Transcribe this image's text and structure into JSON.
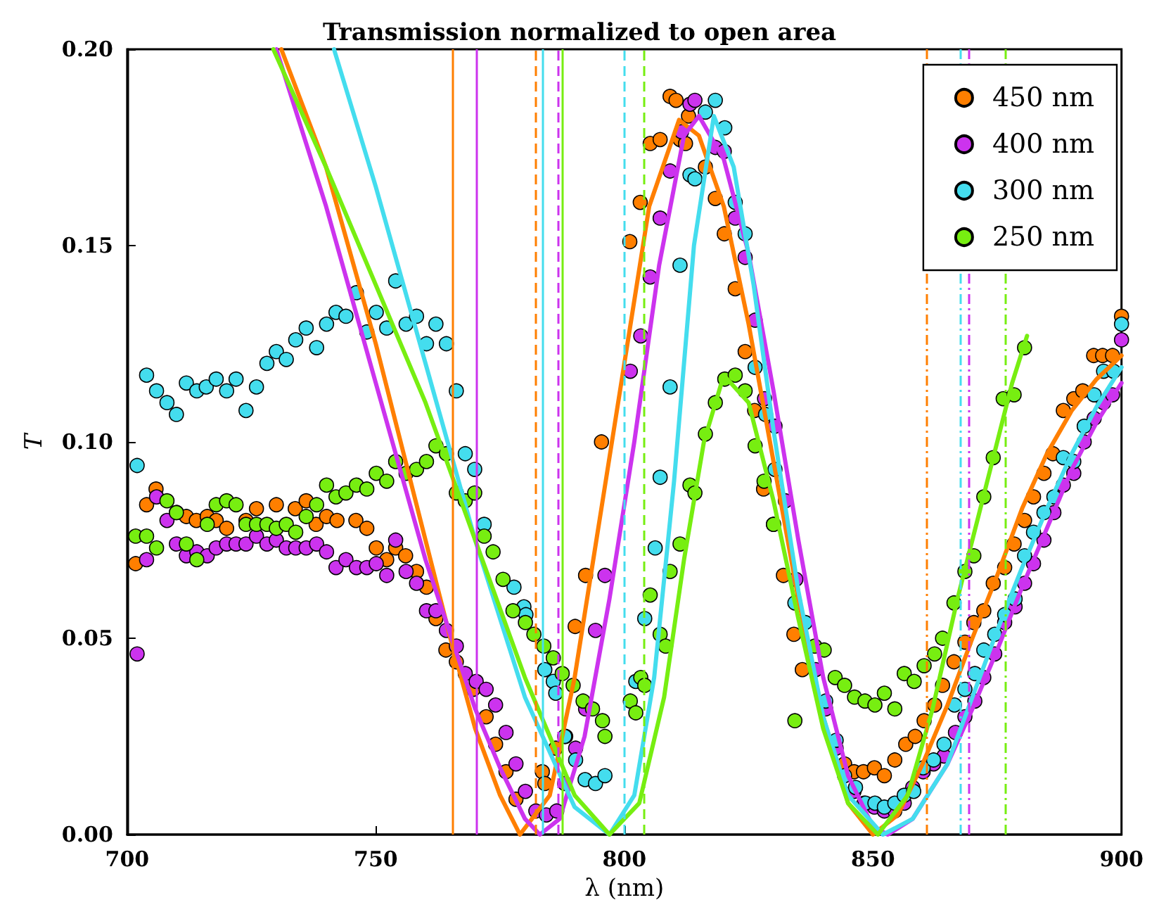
{
  "chart_data": {
    "type": "scatter",
    "title": "Transmission normalized to open area",
    "xlabel": "λ (nm)",
    "ylabel": "T",
    "xlim": [
      700,
      900
    ],
    "ylim": [
      0,
      0.2
    ],
    "xticks": [
      700,
      750,
      800,
      850,
      900
    ],
    "yticks": [
      {
        "value": 0,
        "label": "0.00"
      },
      {
        "value": 0.05,
        "label": "0.05"
      },
      {
        "value": 0.1,
        "label": "0.10"
      },
      {
        "value": 0.15,
        "label": "0.15"
      },
      {
        "value": 0.2,
        "label": "0.20"
      }
    ],
    "grid": false,
    "legend": "top right",
    "marker": "circle",
    "series": [
      {
        "name": "450 nm",
        "color": "#ff7f00",
        "x": [
          701.7,
          703.9,
          705.8,
          709.9,
          711.9,
          713.9,
          716.1,
          717.9,
          720,
          723.9,
          726,
          730,
          733.8,
          736,
          738,
          740.1,
          742.2,
          746,
          748.2,
          750.1,
          752.2,
          754,
          756,
          758.2,
          760.2,
          762.1,
          764.1,
          766.2,
          769.6,
          772.2,
          774.1,
          776.2,
          778.2,
          783.5,
          784,
          786.2,
          788.2,
          790.1,
          792.2,
          795.4,
          801.1,
          803.2,
          805.2,
          807.2,
          809.2,
          810.4,
          811.2,
          812.3,
          812.9,
          816.3,
          818.3,
          820.1,
          822.3,
          824.3,
          826.2,
          828,
          830,
          832,
          834.1,
          835.8,
          844.3,
          846.2,
          848.1,
          850.3,
          852.3,
          854.4,
          856.6,
          858.5,
          860.3,
          862.4,
          864,
          866.3,
          868.5,
          870.3,
          872.3,
          874.2,
          876.5,
          878.4,
          880.5,
          882.3,
          884.4,
          886.2,
          888.3,
          890.4,
          892.2,
          894.4,
          896.2,
          898.2,
          900
        ],
        "values": [
          0.069,
          0.084,
          0.088,
          0.082,
          0.081,
          0.08,
          0.081,
          0.08,
          0.078,
          0.08,
          0.083,
          0.084,
          0.083,
          0.085,
          0.079,
          0.081,
          0.08,
          0.08,
          0.078,
          0.073,
          0.07,
          0.073,
          0.071,
          0.067,
          0.063,
          0.055,
          0.047,
          0.044,
          0.037,
          0.03,
          0.023,
          0.016,
          0.009,
          0.016,
          0.013,
          0.022,
          0.025,
          0.053,
          0.066,
          0.1,
          0.151,
          0.161,
          0.176,
          0.177,
          0.188,
          0.187,
          0.177,
          0.176,
          0.183,
          0.17,
          0.162,
          0.153,
          0.139,
          0.123,
          0.108,
          0.088,
          0.079,
          0.066,
          0.051,
          0.042,
          0.018,
          0.016,
          0.016,
          0.017,
          0.015,
          0.019,
          0.023,
          0.025,
          0.029,
          0.033,
          0.038,
          0.044,
          0.049,
          0.054,
          0.057,
          0.064,
          0.068,
          0.074,
          0.08,
          0.086,
          0.092,
          0.097,
          0.108,
          0.111,
          0.113,
          0.122,
          0.122,
          0.122,
          0.132
        ]
      },
      {
        "name": "400 nm",
        "color": "#cc33ee",
        "x": [
          702,
          703.9,
          705.9,
          708,
          709.9,
          711.9,
          714,
          716.1,
          717.9,
          720,
          721.9,
          723.9,
          726,
          728.1,
          730,
          732,
          733.9,
          736,
          738.1,
          740.1,
          742,
          744,
          746.1,
          748.2,
          750.1,
          752.2,
          754,
          756.1,
          758.2,
          760.2,
          762.1,
          764.2,
          766.2,
          768,
          770.2,
          772.2,
          774.1,
          776.2,
          778.2,
          780.1,
          782.2,
          784.3,
          786.4,
          788,
          790.2,
          792.2,
          794.2,
          796.1,
          801.2,
          803.3,
          805.2,
          807.2,
          809.2,
          811.5,
          813.2,
          814.2,
          818.3,
          820.1,
          822.3,
          824.3,
          826.3,
          828.2,
          830.3,
          832.4,
          834.5,
          838.5,
          840.5,
          842.6,
          846.2,
          848.2,
          850.3,
          852.3,
          854.4,
          856.3,
          858,
          860.1,
          862.2,
          864.3,
          866.6,
          868.5,
          870.5,
          872.3,
          874.5,
          876.5,
          878.6,
          880.5,
          882.3,
          884.4,
          886.4,
          888.3,
          890.4,
          892.5,
          894.5,
          896.4,
          898.2,
          900
        ],
        "values": [
          0.046,
          0.07,
          0.086,
          0.08,
          0.074,
          0.071,
          0.072,
          0.071,
          0.073,
          0.074,
          0.074,
          0.074,
          0.076,
          0.074,
          0.075,
          0.073,
          0.073,
          0.073,
          0.074,
          0.072,
          0.068,
          0.07,
          0.068,
          0.068,
          0.069,
          0.066,
          0.075,
          0.067,
          0.064,
          0.057,
          0.057,
          0.052,
          0.048,
          0.041,
          0.039,
          0.037,
          0.033,
          0.026,
          0.018,
          0.011,
          0.006,
          0.005,
          0.006,
          0.013,
          0.022,
          0.032,
          0.052,
          0.066,
          0.118,
          0.127,
          0.142,
          0.157,
          0.169,
          0.179,
          0.186,
          0.187,
          0.175,
          0.174,
          0.157,
          0.147,
          0.131,
          0.111,
          0.104,
          0.085,
          0.065,
          0.042,
          0.032,
          0.022,
          0.011,
          0.008,
          0.007,
          0.006,
          0.006,
          0.008,
          0.012,
          0.016,
          0.018,
          0.02,
          0.026,
          0.03,
          0.034,
          0.04,
          0.046,
          0.054,
          0.058,
          0.064,
          0.069,
          0.075,
          0.082,
          0.089,
          0.092,
          0.1,
          0.106,
          0.11,
          0.112,
          0.126
        ]
      },
      {
        "name": "300 nm",
        "color": "#44ddee",
        "x": [
          702,
          703.9,
          705.9,
          708,
          709.9,
          711.9,
          714,
          715.9,
          717.9,
          720,
          721.9,
          723.9,
          726,
          728.1,
          730,
          732,
          733.9,
          736,
          738.1,
          740.1,
          742,
          744,
          746.1,
          748.2,
          750.1,
          752.2,
          754,
          756.1,
          758.2,
          760.2,
          762.1,
          764.2,
          766.2,
          768,
          769.9,
          771.8,
          777.8,
          779.8,
          780.2,
          784,
          785.7,
          786.2,
          788,
          790.2,
          792.1,
          794.2,
          796.1,
          802.3,
          804.1,
          806.2,
          807.2,
          809.2,
          811.2,
          813.2,
          814.2,
          816.3,
          818.3,
          820.2,
          822.3,
          824.3,
          826.3,
          828.4,
          830.3,
          834.3,
          836.4,
          840.5,
          842.6,
          844.3,
          846.5,
          848.5,
          850.4,
          852.3,
          854.4,
          856.3,
          858.2,
          860.1,
          862.2,
          864.3,
          866.4,
          868.5,
          870.5,
          872.3,
          874.5,
          876.5,
          878.6,
          880.5,
          882.3,
          884.4,
          886.4,
          888.3,
          890.4,
          892.5,
          894.5,
          896.4,
          898.4,
          900
        ],
        "values": [
          0.094,
          0.117,
          0.113,
          0.11,
          0.107,
          0.115,
          0.113,
          0.114,
          0.116,
          0.113,
          0.116,
          0.108,
          0.114,
          0.12,
          0.123,
          0.121,
          0.126,
          0.129,
          0.124,
          0.13,
          0.133,
          0.132,
          0.138,
          0.128,
          0.133,
          0.129,
          0.141,
          0.13,
          0.132,
          0.125,
          0.13,
          0.125,
          0.113,
          0.097,
          0.093,
          0.079,
          0.063,
          0.058,
          0.056,
          0.042,
          0.039,
          0.036,
          0.025,
          0.019,
          0.014,
          0.013,
          0.015,
          0.039,
          0.055,
          0.073,
          0.091,
          0.114,
          0.145,
          0.168,
          0.167,
          0.184,
          0.187,
          0.18,
          0.161,
          0.153,
          0.119,
          0.107,
          0.093,
          0.059,
          0.054,
          0.034,
          0.024,
          0.015,
          0.012,
          0.008,
          0.008,
          0.007,
          0.008,
          0.01,
          0.011,
          0.017,
          0.019,
          0.023,
          0.033,
          0.037,
          0.041,
          0.047,
          0.051,
          0.056,
          0.06,
          0.071,
          0.077,
          0.082,
          0.086,
          0.096,
          0.095,
          0.104,
          0.112,
          0.118,
          0.118,
          0.13
        ]
      },
      {
        "name": "250 nm",
        "color": "#77ee11",
        "x": [
          701.7,
          703.9,
          705.9,
          708,
          709.9,
          711.9,
          714,
          716.1,
          717.9,
          720,
          721.9,
          723.9,
          726,
          728.1,
          730,
          732,
          733.9,
          736,
          738.1,
          740.1,
          742,
          744,
          746.1,
          748.2,
          750.1,
          752.2,
          754,
          756.1,
          758.2,
          760.2,
          762.1,
          764.2,
          766.2,
          768,
          769.9,
          771.8,
          773.6,
          775.6,
          777.6,
          780.1,
          781.8,
          783.8,
          785.7,
          787.5,
          789.7,
          791.7,
          793.6,
          795.6,
          796.1,
          801.2,
          802.3,
          803.3,
          804.1,
          805.2,
          807.2,
          808.3,
          809.2,
          811.2,
          813.2,
          814.2,
          816.3,
          818.3,
          820.2,
          822.3,
          824.3,
          826.3,
          828.1,
          830,
          834.3,
          838.3,
          840.2,
          842.4,
          844.3,
          846.3,
          848.4,
          850.4,
          852.3,
          854.4,
          856.3,
          858.3,
          860.3,
          862.4,
          864,
          866.3,
          868.5,
          870.3,
          872.3,
          874.2,
          876.2,
          878.4,
          880.5
        ],
        "values": [
          0.076,
          0.076,
          0.073,
          0.085,
          0.082,
          0.074,
          0.07,
          0.079,
          0.084,
          0.085,
          0.084,
          0.079,
          0.079,
          0.079,
          0.078,
          0.079,
          0.077,
          0.081,
          0.084,
          0.089,
          0.086,
          0.087,
          0.089,
          0.088,
          0.092,
          0.09,
          0.095,
          0.092,
          0.093,
          0.095,
          0.099,
          0.097,
          0.087,
          0.085,
          0.087,
          0.076,
          0.072,
          0.065,
          0.057,
          0.054,
          0.051,
          0.048,
          0.045,
          0.041,
          0.038,
          0.034,
          0.032,
          0.029,
          0.025,
          0.034,
          0.031,
          0.04,
          0.038,
          0.061,
          0.051,
          0.048,
          0.067,
          0.074,
          0.089,
          0.087,
          0.102,
          0.11,
          0.116,
          0.117,
          0.113,
          0.099,
          0.09,
          0.079,
          0.029,
          0.048,
          0.047,
          0.04,
          0.038,
          0.035,
          0.034,
          0.033,
          0.036,
          0.032,
          0.041,
          0.039,
          0.043,
          0.046,
          0.05,
          0.059,
          0.067,
          0.071,
          0.086,
          0.096,
          0.111,
          0.112,
          0.124
        ]
      },
      {
        "type": "line",
        "marker": "none",
        "color": "#ff7f00",
        "x": [
          731,
          740,
          750,
          760,
          765,
          770,
          775,
          779,
          785,
          790,
          795,
          800,
          805,
          811,
          815,
          820,
          825,
          830,
          835,
          840,
          845,
          850,
          855,
          860,
          865,
          870,
          875,
          880,
          885,
          890,
          895,
          900
        ],
        "values": [
          0.2,
          0.17,
          0.125,
          0.075,
          0.05,
          0.027,
          0.01,
          0,
          0.01,
          0.04,
          0.08,
          0.12,
          0.16,
          0.182,
          0.178,
          0.16,
          0.13,
          0.095,
          0.06,
          0.03,
          0.008,
          0,
          0.005,
          0.018,
          0.033,
          0.05,
          0.066,
          0.083,
          0.097,
          0.108,
          0.116,
          0.122
        ]
      },
      {
        "type": "line",
        "marker": "none",
        "color": "#cc33ee",
        "x": [
          730,
          740,
          750,
          760,
          770,
          775,
          780,
          783,
          787,
          792,
          797,
          802,
          807,
          812,
          815,
          820,
          825,
          830,
          835,
          840,
          845,
          850,
          853,
          858,
          865,
          870,
          875,
          880,
          885,
          890,
          895,
          900
        ],
        "values": [
          0.2,
          0.16,
          0.115,
          0.07,
          0.032,
          0.017,
          0.004,
          0,
          0.004,
          0.025,
          0.06,
          0.1,
          0.145,
          0.178,
          0.183,
          0.172,
          0.148,
          0.113,
          0.075,
          0.04,
          0.015,
          0.002,
          0,
          0.004,
          0.018,
          0.032,
          0.047,
          0.063,
          0.078,
          0.093,
          0.105,
          0.115
        ]
      },
      {
        "type": "line",
        "marker": "none",
        "color": "#44ddee",
        "x": [
          741.6,
          750,
          760,
          770,
          780,
          790,
          797,
          802,
          806,
          810,
          814,
          818,
          822,
          826,
          830,
          835,
          840,
          845,
          852,
          858,
          865,
          870,
          875,
          880,
          885,
          890,
          895,
          900
        ],
        "values": [
          0.2,
          0.165,
          0.12,
          0.075,
          0.035,
          0.007,
          0,
          0.01,
          0.04,
          0.09,
          0.15,
          0.183,
          0.17,
          0.14,
          0.103,
          0.062,
          0.03,
          0.01,
          0,
          0.004,
          0.018,
          0.035,
          0.052,
          0.068,
          0.083,
          0.097,
          0.109,
          0.119
        ]
      },
      {
        "type": "line",
        "marker": "none",
        "color": "#77ee11",
        "x": [
          729.4,
          740,
          750,
          760,
          770,
          780,
          790,
          797,
          803,
          808,
          812,
          816,
          820,
          825,
          830,
          835,
          840,
          845,
          851,
          857,
          862,
          867,
          872,
          878,
          881
        ],
        "values": [
          0.2,
          0.17,
          0.14,
          0.11,
          0.075,
          0.04,
          0.01,
          0,
          0.008,
          0.035,
          0.07,
          0.1,
          0.117,
          0.11,
          0.085,
          0.055,
          0.027,
          0.008,
          0,
          0.01,
          0.032,
          0.06,
          0.085,
          0.115,
          0.127
        ]
      }
    ],
    "ref_lines": [
      {
        "axis": "x",
        "value": 765.5,
        "color": "#ff7f00",
        "line_style": "solid"
      },
      {
        "axis": "x",
        "value": 770.2,
        "color": "#cc33ee",
        "line_style": "solid"
      },
      {
        "axis": "x",
        "value": 783.5,
        "color": "#44ddee",
        "line_style": "solid"
      },
      {
        "axis": "x",
        "value": 787.4,
        "color": "#77ee11",
        "line_style": "solid"
      },
      {
        "axis": "x",
        "value": 782.1,
        "color": "#ff7f00",
        "line_style": "dashed"
      },
      {
        "axis": "x",
        "value": 786.8,
        "color": "#cc33ee",
        "line_style": "dashed"
      },
      {
        "axis": "x",
        "value": 800.1,
        "color": "#44ddee",
        "line_style": "dashed"
      },
      {
        "axis": "x",
        "value": 804,
        "color": "#77ee11",
        "line_style": "dashed"
      },
      {
        "axis": "x",
        "value": 860.9,
        "color": "#ff7f00",
        "line_style": "dashdot"
      },
      {
        "axis": "x",
        "value": 867.5,
        "color": "#44ddee",
        "line_style": "dashdot"
      },
      {
        "axis": "x",
        "value": 869.2,
        "color": "#cc33ee",
        "line_style": "dashdot"
      },
      {
        "axis": "x",
        "value": 876.7,
        "color": "#77ee11",
        "line_style": "dashdot"
      }
    ]
  }
}
